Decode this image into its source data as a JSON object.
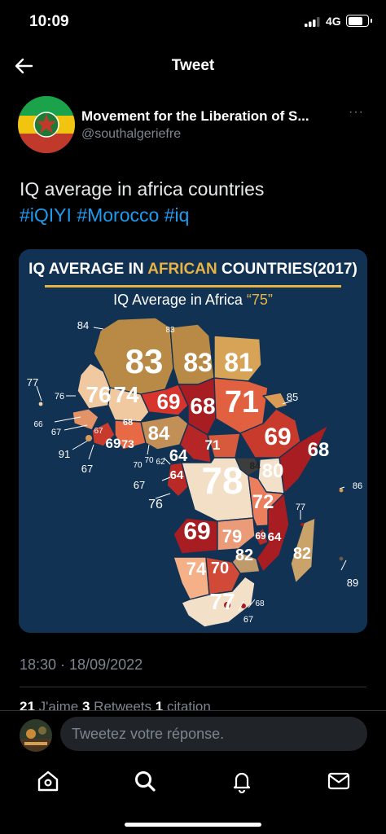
{
  "status_bar": {
    "time": "10:09",
    "network": "4G"
  },
  "nav": {
    "title": "Tweet",
    "back_icon": "arrow-left-icon"
  },
  "author": {
    "name": "Movement for the Liberation of S...",
    "handle": "@southalgeriefre",
    "more": "···"
  },
  "tweet": {
    "text": "IQ average in africa countries",
    "hashtags": [
      "#iQIYI",
      "#Morocco",
      "#iq"
    ],
    "timestamp": "18:30 · 18/09/2022"
  },
  "media": {
    "title_part1": "IQ AVERAGE IN ",
    "title_part2": "AFRICAN",
    "title_part3": " COUNTRIES(2017)",
    "subtitle_text": "IQ Average in Africa ",
    "subtitle_value": "“75”",
    "colors": {
      "background": "#123254",
      "title_accent": "#e7b444",
      "low": "#a81d21",
      "mid": "#e0603f",
      "high": "#b88a45",
      "pale": "#f1d2b0"
    },
    "labels_on_map": [
      {
        "id": "morocco",
        "text": "84"
      },
      {
        "id": "western_sahara",
        "text": "83"
      },
      {
        "id": "algeria",
        "text": "83"
      },
      {
        "id": "libya",
        "text": "83"
      },
      {
        "id": "egypt",
        "text": "81"
      },
      {
        "id": "mauritania",
        "text": "76"
      },
      {
        "id": "mali",
        "text": "74"
      },
      {
        "id": "niger",
        "text": "69"
      },
      {
        "id": "chad",
        "text": "68"
      },
      {
        "id": "sudan",
        "text": "71"
      },
      {
        "id": "cape_verde",
        "text": "77"
      },
      {
        "id": "senegal",
        "text": "76"
      },
      {
        "id": "gambia",
        "text": "66"
      },
      {
        "id": "guinea_bissau",
        "text": "67"
      },
      {
        "id": "guinea",
        "text": "67"
      },
      {
        "id": "sierra_leone",
        "text": "91"
      },
      {
        "id": "liberia",
        "text": "67"
      },
      {
        "id": "burkina",
        "text": "68"
      },
      {
        "id": "ivory_coast",
        "text": "69"
      },
      {
        "id": "ghana",
        "text": "73"
      },
      {
        "id": "nigeria",
        "text": "84"
      },
      {
        "id": "togo",
        "text": "70"
      },
      {
        "id": "benin",
        "text": "70"
      },
      {
        "id": "cameroon",
        "text": "64"
      },
      {
        "id": "eq_guinea",
        "text": "62"
      },
      {
        "id": "gabon",
        "text": "64"
      },
      {
        "id": "sao_tome",
        "text": "67"
      },
      {
        "id": "car",
        "text": "71"
      },
      {
        "id": "eritrea",
        "text": "85"
      },
      {
        "id": "ethiopia",
        "text": "69"
      },
      {
        "id": "somalia",
        "text": "68"
      },
      {
        "id": "uganda",
        "text": "84"
      },
      {
        "id": "kenya",
        "text": "80"
      },
      {
        "id": "drc",
        "text": "78"
      },
      {
        "id": "congo",
        "text": "76"
      },
      {
        "id": "tanzania",
        "text": "72"
      },
      {
        "id": "seychelles",
        "text": "86"
      },
      {
        "id": "comoros",
        "text": "77"
      },
      {
        "id": "angola",
        "text": "69"
      },
      {
        "id": "zambia",
        "text": "79"
      },
      {
        "id": "malawi",
        "text": "69"
      },
      {
        "id": "mozambique",
        "text": "64"
      },
      {
        "id": "zimbabwe",
        "text": "82"
      },
      {
        "id": "madagascar",
        "text": "82"
      },
      {
        "id": "mauritius",
        "text": "89"
      },
      {
        "id": "namibia",
        "text": "74"
      },
      {
        "id": "botswana",
        "text": "70"
      },
      {
        "id": "south_africa",
        "text": "77"
      },
      {
        "id": "lesotho",
        "text": "68"
      },
      {
        "id": "swaziland",
        "text": "67"
      }
    ]
  },
  "engagement": {
    "likes_count": "21",
    "likes_label": " J'aime ",
    "retweets_count": "3",
    "retweets_label": " Retweets ",
    "quotes_count": "1",
    "quotes_label": " citation"
  },
  "reply": {
    "placeholder": "Tweetez votre réponse."
  },
  "tab_bar": {
    "icons": [
      "home-icon",
      "search-icon",
      "notifications-icon",
      "messages-icon"
    ]
  }
}
